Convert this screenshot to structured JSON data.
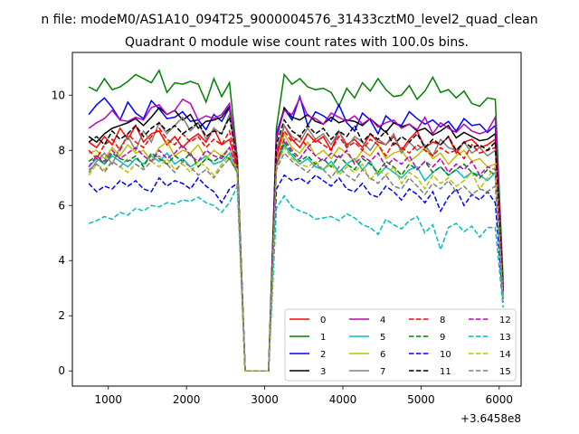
{
  "figure": {
    "suptitle": "n file: modeM0/AS1A10_094T25_9000004576_31433cztM0_level2_quad_clean",
    "offset_label": "+3.6458e8"
  },
  "chart_data": {
    "type": "line",
    "title": "Quadrant 0 module wise count rates with 100.0s bins.",
    "xlabel": "",
    "ylabel": "",
    "xlim": [
      540,
      6280
    ],
    "ylim": [
      -0.55,
      11.55
    ],
    "xticks": [
      1000,
      2000,
      3000,
      4000,
      5000,
      6000
    ],
    "yticks": [
      0,
      2,
      4,
      6,
      8,
      10
    ],
    "grid": false,
    "legend": {
      "placement": "lower-right",
      "columns": 4
    },
    "x": [
      750,
      850,
      950,
      1050,
      1150,
      1250,
      1350,
      1450,
      1550,
      1650,
      1750,
      1850,
      1950,
      2050,
      2150,
      2250,
      2350,
      2450,
      2550,
      2650,
      2750,
      2850,
      2950,
      3050,
      3150,
      3250,
      3350,
      3450,
      3550,
      3650,
      3750,
      3850,
      3950,
      4050,
      4150,
      4250,
      4350,
      4450,
      4550,
      4650,
      4750,
      4850,
      4950,
      5050,
      5150,
      5250,
      5350,
      5450,
      5550,
      5650,
      5750,
      5850,
      5950,
      6050
    ],
    "series": [
      {
        "name": "0",
        "color": "#ff0000",
        "dash": "solid",
        "values": [
          8.3,
          8.1,
          8.5,
          8.2,
          8.8,
          8.4,
          8.9,
          8.3,
          8.6,
          8.7,
          8.2,
          8.5,
          8.1,
          8.4,
          8.6,
          8.3,
          8.8,
          8.2,
          8.4,
          7.4,
          0,
          0,
          0,
          0,
          7.7,
          8.9,
          8.4,
          8.1,
          8.6,
          8.3,
          8.5,
          8.0,
          8.7,
          8.2,
          8.4,
          8.1,
          8.6,
          8.3,
          8.2,
          8.5,
          8.0,
          8.4,
          8.7,
          8.1,
          8.3,
          8.2,
          8.5,
          7.9,
          8.3,
          8.4,
          8.1,
          8.2,
          8.4,
          3.0
        ]
      },
      {
        "name": "1",
        "color": "#008000",
        "dash": "solid",
        "values": [
          10.3,
          10.15,
          10.6,
          10.2,
          10.3,
          10.5,
          10.75,
          10.6,
          10.45,
          10.9,
          10.1,
          10.45,
          10.4,
          10.5,
          10.4,
          9.75,
          10.6,
          9.95,
          10.45,
          7.7,
          0,
          0,
          0,
          0,
          8.8,
          10.75,
          10.4,
          10.6,
          10.3,
          10.2,
          10.25,
          10.1,
          9.6,
          10.25,
          9.9,
          10.45,
          10.15,
          10.6,
          10.2,
          9.95,
          10.0,
          10.35,
          9.85,
          10.15,
          10.65,
          10.1,
          10.2,
          9.9,
          10.15,
          9.7,
          9.6,
          9.9,
          9.85,
          3.3
        ]
      },
      {
        "name": "2",
        "color": "#0000ff",
        "dash": "solid",
        "values": [
          9.3,
          9.65,
          9.9,
          9.55,
          9.1,
          9.75,
          9.35,
          9.15,
          9.8,
          9.5,
          9.15,
          9.2,
          9.4,
          9.05,
          9.1,
          8.75,
          9.3,
          9.05,
          9.55,
          7.6,
          0,
          0,
          0,
          0,
          8.6,
          9.5,
          9.1,
          9.95,
          8.9,
          9.4,
          9.25,
          9.05,
          9.65,
          9.0,
          8.7,
          9.35,
          9.1,
          8.6,
          9.25,
          9.0,
          8.9,
          9.4,
          9.15,
          8.95,
          9.1,
          8.85,
          9.05,
          8.7,
          9.15,
          8.9,
          8.95,
          8.65,
          8.9,
          3.1
        ]
      },
      {
        "name": "3",
        "color": "#000000",
        "dash": "solid",
        "values": [
          8.5,
          8.3,
          8.6,
          8.8,
          8.9,
          9.0,
          9.15,
          8.9,
          9.2,
          9.55,
          9.3,
          9.45,
          9.1,
          9.3,
          8.8,
          9.05,
          9.1,
          9.2,
          9.6,
          7.5,
          0,
          0,
          0,
          0,
          8.4,
          9.55,
          9.2,
          9.1,
          9.3,
          9.05,
          8.95,
          9.2,
          9.0,
          9.1,
          9.05,
          8.9,
          9.15,
          8.9,
          8.65,
          9.0,
          8.85,
          8.95,
          8.7,
          8.8,
          8.55,
          8.7,
          8.9,
          8.45,
          8.65,
          8.5,
          8.35,
          8.4,
          8.6,
          2.9
        ]
      },
      {
        "name": "4",
        "color": "#bf00bf",
        "dash": "solid",
        "values": [
          8.8,
          9.0,
          9.15,
          9.45,
          9.1,
          9.05,
          9.2,
          9.1,
          9.55,
          9.65,
          9.3,
          9.45,
          9.85,
          9.7,
          9.1,
          9.25,
          9.15,
          9.3,
          9.7,
          7.7,
          0,
          0,
          0,
          0,
          8.5,
          9.45,
          9.3,
          9.9,
          9.25,
          9.15,
          8.95,
          9.35,
          9.2,
          9.05,
          9.25,
          8.95,
          9.15,
          8.85,
          9.0,
          9.1,
          8.8,
          8.95,
          8.75,
          9.2,
          8.6,
          9.0,
          8.8,
          8.65,
          8.95,
          8.7,
          8.6,
          8.7,
          9.2,
          3.0
        ]
      },
      {
        "name": "5",
        "color": "#00bfbf",
        "dash": "solid",
        "values": [
          7.4,
          7.7,
          7.5,
          7.8,
          7.6,
          7.4,
          7.7,
          7.5,
          7.8,
          7.6,
          7.9,
          7.5,
          7.7,
          7.4,
          7.6,
          7.8,
          7.5,
          7.6,
          7.9,
          7.2,
          0,
          0,
          0,
          0,
          7.4,
          8.2,
          7.8,
          7.5,
          7.7,
          7.4,
          7.3,
          7.6,
          7.2,
          7.5,
          7.7,
          7.3,
          7.6,
          7.1,
          7.4,
          7.2,
          7.0,
          7.3,
          7.4,
          6.9,
          7.2,
          7.4,
          7.1,
          7.3,
          7.0,
          7.2,
          7.1,
          6.9,
          7.2,
          2.7
        ]
      },
      {
        "name": "6",
        "color": "#bfbf00",
        "dash": "solid",
        "values": [
          7.9,
          8.0,
          7.7,
          8.1,
          7.8,
          8.2,
          7.9,
          8.0,
          7.6,
          8.1,
          8.3,
          7.8,
          8.0,
          7.9,
          8.2,
          7.7,
          8.0,
          7.8,
          8.1,
          7.3,
          0,
          0,
          0,
          0,
          7.6,
          8.6,
          8.1,
          7.9,
          8.3,
          7.8,
          8.0,
          7.7,
          8.1,
          7.9,
          7.6,
          8.0,
          7.8,
          8.2,
          7.7,
          7.9,
          8.0,
          7.6,
          7.8,
          8.1,
          7.7,
          7.9,
          7.5,
          7.8,
          8.0,
          7.6,
          7.7,
          7.4,
          7.5,
          2.8
        ]
      },
      {
        "name": "7",
        "color": "#808080",
        "dash": "solid",
        "values": [
          7.2,
          7.6,
          7.9,
          7.5,
          8.1,
          8.5,
          8.0,
          8.7,
          8.3,
          9.0,
          8.6,
          8.9,
          9.2,
          8.7,
          9.0,
          8.4,
          8.8,
          8.6,
          9.3,
          7.5,
          0,
          0,
          0,
          0,
          8.0,
          8.9,
          8.5,
          8.3,
          8.8,
          8.4,
          8.6,
          8.2,
          8.7,
          8.1,
          8.5,
          8.3,
          8.0,
          8.4,
          8.2,
          8.6,
          7.9,
          8.3,
          8.0,
          8.2,
          7.8,
          8.4,
          8.1,
          8.0,
          8.3,
          7.9,
          8.1,
          7.8,
          8.0,
          2.9
        ]
      },
      {
        "name": "8",
        "color": "#ff0000",
        "dash": "dashed",
        "values": [
          8.0,
          7.7,
          8.2,
          8.4,
          8.0,
          8.6,
          8.3,
          8.1,
          8.5,
          8.8,
          8.4,
          8.2,
          8.6,
          8.3,
          8.5,
          8.1,
          8.4,
          8.2,
          8.7,
          7.5,
          0,
          0,
          0,
          0,
          7.9,
          8.7,
          8.3,
          8.5,
          8.1,
          8.4,
          8.2,
          8.0,
          8.5,
          8.1,
          8.3,
          8.0,
          8.4,
          8.2,
          7.8,
          8.3,
          8.1,
          7.9,
          8.2,
          8.0,
          7.8,
          8.1,
          7.9,
          8.0,
          7.7,
          8.2,
          7.9,
          8.0,
          8.1,
          2.9
        ]
      },
      {
        "name": "9",
        "color": "#008000",
        "dash": "dashed",
        "values": [
          7.6,
          7.8,
          7.5,
          7.9,
          7.7,
          7.6,
          7.8,
          7.4,
          7.9,
          7.7,
          7.5,
          7.8,
          7.6,
          7.9,
          7.4,
          7.7,
          7.6,
          7.8,
          7.7,
          7.2,
          0,
          0,
          0,
          0,
          7.5,
          8.3,
          7.9,
          7.6,
          7.8,
          7.5,
          7.7,
          7.4,
          7.8,
          7.5,
          7.3,
          7.7,
          7.5,
          7.2,
          7.6,
          7.4,
          7.1,
          7.5,
          7.3,
          7.6,
          7.2,
          7.4,
          7.1,
          7.3,
          7.5,
          7.2,
          7.0,
          7.3,
          7.1,
          2.7
        ]
      },
      {
        "name": "10",
        "color": "#0000ff",
        "dash": "dashed",
        "values": [
          6.8,
          6.5,
          6.7,
          6.6,
          6.9,
          6.7,
          6.9,
          6.6,
          6.5,
          7.0,
          6.7,
          6.9,
          6.8,
          6.6,
          7.0,
          6.7,
          6.5,
          6.1,
          6.6,
          6.8,
          0,
          0,
          0,
          0,
          6.6,
          7.1,
          6.9,
          7.0,
          6.8,
          7.1,
          6.9,
          6.7,
          7.0,
          6.6,
          6.5,
          6.8,
          6.4,
          6.3,
          6.7,
          6.5,
          6.2,
          6.6,
          6.4,
          6.1,
          6.5,
          5.8,
          6.3,
          6.6,
          6.0,
          6.4,
          6.2,
          6.5,
          6.1,
          2.5
        ]
      },
      {
        "name": "11",
        "color": "#000000",
        "dash": "dashed",
        "values": [
          8.3,
          8.5,
          8.2,
          8.7,
          8.4,
          8.6,
          8.9,
          8.5,
          8.8,
          9.0,
          8.7,
          8.9,
          8.6,
          8.8,
          9.0,
          8.5,
          8.7,
          8.6,
          9.2,
          7.6,
          0,
          0,
          0,
          0,
          8.2,
          9.1,
          8.7,
          8.5,
          8.9,
          8.6,
          8.8,
          8.4,
          8.7,
          8.5,
          8.9,
          8.3,
          8.6,
          8.4,
          8.7,
          8.2,
          8.5,
          8.3,
          8.6,
          8.1,
          8.4,
          8.2,
          8.5,
          8.0,
          8.3,
          8.1,
          8.2,
          8.0,
          8.3,
          2.9
        ]
      },
      {
        "name": "12",
        "color": "#bf00bf",
        "dash": "dashed",
        "values": [
          7.4,
          7.8,
          7.6,
          8.0,
          7.7,
          7.9,
          8.1,
          7.8,
          7.6,
          8.0,
          7.7,
          7.9,
          8.2,
          7.8,
          7.6,
          8.0,
          7.8,
          7.7,
          8.1,
          7.3,
          0,
          0,
          0,
          0,
          7.5,
          8.4,
          8.0,
          7.7,
          8.1,
          7.8,
          7.6,
          7.9,
          7.7,
          8.0,
          7.5,
          7.8,
          7.6,
          7.9,
          7.4,
          7.7,
          7.5,
          7.8,
          7.3,
          7.6,
          7.4,
          7.7,
          7.2,
          7.5,
          7.3,
          7.6,
          7.1,
          7.4,
          7.3,
          2.7
        ]
      },
      {
        "name": "13",
        "color": "#00bfbf",
        "dash": "dashed",
        "values": [
          5.35,
          5.45,
          5.6,
          5.5,
          5.75,
          5.65,
          5.9,
          5.8,
          6.0,
          5.95,
          6.1,
          6.05,
          6.2,
          6.15,
          6.3,
          6.1,
          6.0,
          5.75,
          6.1,
          6.7,
          0,
          0,
          0,
          0,
          5.9,
          6.35,
          5.95,
          5.8,
          5.7,
          5.5,
          5.55,
          5.6,
          5.45,
          5.7,
          5.55,
          5.3,
          5.2,
          4.95,
          5.5,
          5.3,
          5.15,
          5.45,
          5.6,
          5.0,
          5.3,
          4.4,
          5.2,
          5.35,
          5.05,
          5.25,
          4.85,
          5.2,
          5.2,
          2.3
        ]
      },
      {
        "name": "14",
        "color": "#bfbf00",
        "dash": "dashed",
        "values": [
          7.1,
          7.5,
          7.3,
          7.6,
          7.4,
          7.2,
          7.5,
          7.3,
          7.6,
          7.4,
          7.7,
          7.3,
          7.5,
          7.2,
          7.6,
          7.4,
          7.1,
          7.5,
          7.8,
          7.3,
          0,
          0,
          0,
          0,
          7.4,
          8.1,
          7.7,
          7.5,
          7.4,
          7.6,
          7.3,
          7.5,
          7.1,
          7.4,
          7.2,
          7.5,
          6.9,
          7.3,
          7.1,
          7.4,
          6.8,
          7.2,
          7.0,
          6.6,
          7.1,
          6.8,
          7.0,
          6.7,
          6.9,
          7.2,
          6.6,
          7.0,
          7.4,
          2.6
        ]
      },
      {
        "name": "15",
        "color": "#808080",
        "dash": "dashed",
        "values": [
          7.3,
          7.5,
          7.2,
          7.6,
          7.4,
          7.7,
          7.5,
          7.3,
          7.6,
          7.8,
          7.5,
          7.2,
          7.6,
          7.4,
          7.1,
          7.3,
          7.0,
          7.4,
          7.7,
          7.2,
          0,
          0,
          0,
          0,
          7.3,
          7.9,
          7.6,
          7.4,
          7.2,
          7.5,
          7.3,
          7.0,
          7.4,
          7.1,
          6.9,
          7.3,
          7.0,
          6.8,
          7.1,
          6.7,
          6.6,
          7.0,
          6.7,
          6.4,
          6.8,
          6.6,
          6.9,
          6.5,
          6.7,
          6.4,
          6.6,
          6.5,
          6.7,
          2.6
        ]
      }
    ]
  }
}
